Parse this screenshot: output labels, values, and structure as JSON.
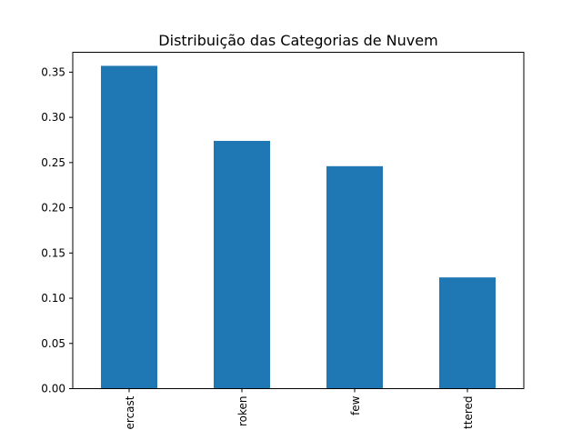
{
  "chart_data": {
    "type": "bar",
    "title": "Distribuição das Categorias de Nuvem",
    "categories": [
      "ercast",
      "roken",
      "few",
      "ttered"
    ],
    "values": [
      0.357,
      0.274,
      0.246,
      0.123
    ],
    "xlabel": "",
    "ylabel": "",
    "ylim": [
      0,
      0.372
    ],
    "yticks": [
      "0.00",
      "0.05",
      "0.10",
      "0.15",
      "0.20",
      "0.25",
      "0.30",
      "0.35"
    ],
    "ytick_values": [
      0.0,
      0.05,
      0.1,
      0.15,
      0.2,
      0.25,
      0.3,
      0.35
    ],
    "x_tick_rotation": "vertical",
    "grid": false,
    "legend": "none",
    "colors": {
      "bar": "#1f77b4",
      "axes": "#000000",
      "background": "#ffffff"
    }
  }
}
